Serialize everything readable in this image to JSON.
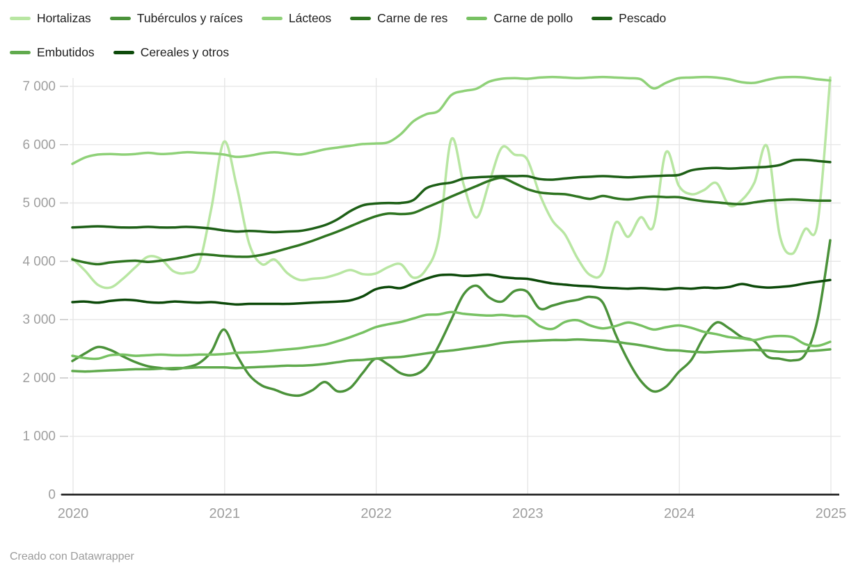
{
  "footer": {
    "credit": "Creado con Datawrapper"
  },
  "legend": {
    "position": "top"
  },
  "chart_data": {
    "type": "line",
    "title": "",
    "xlabel": "",
    "ylabel": "",
    "x_unit": "month",
    "x_range": [
      "2020-01",
      "2025-01"
    ],
    "x_ticks": [
      "2020",
      "2021",
      "2022",
      "2023",
      "2024",
      "2025"
    ],
    "y_ticks": [
      {
        "value": 0,
        "label": "0"
      },
      {
        "value": 1000,
        "label": "1 000"
      },
      {
        "value": 2000,
        "label": "2 000"
      },
      {
        "value": 3000,
        "label": "3 000"
      },
      {
        "value": 4000,
        "label": "4 000"
      },
      {
        "value": 5000,
        "label": "5 000"
      },
      {
        "value": 6000,
        "label": "6 000"
      },
      {
        "value": 7000,
        "label": "7 000"
      }
    ],
    "ylim": [
      0,
      7000
    ],
    "grid": "on",
    "legend_position": "top",
    "style": {
      "grid_color": "#e4e4e4",
      "tick_color": "#c9c9c9",
      "axis_text_color": "#9e9e9e",
      "baseline_color": "#141414",
      "line_width": 3.5
    },
    "series": [
      {
        "name": "Hortalizas",
        "color": "#b8e6a2",
        "values": [
          4050,
          3840,
          3600,
          3550,
          3700,
          3900,
          4080,
          4040,
          3830,
          3800,
          3950,
          4900,
          6050,
          5300,
          4300,
          3950,
          4030,
          3800,
          3680,
          3700,
          3720,
          3780,
          3850,
          3780,
          3790,
          3900,
          3950,
          3720,
          3860,
          4400,
          6090,
          5300,
          4750,
          5350,
          5950,
          5830,
          5750,
          5150,
          4700,
          4460,
          4050,
          3763,
          3820,
          4660,
          4420,
          4755,
          4600,
          5870,
          5300,
          5150,
          5220,
          5340,
          4960,
          5050,
          5350,
          5970,
          4450,
          4130,
          4550,
          4650,
          7150
        ]
      },
      {
        "name": "Tubérculos y raíces",
        "color": "#4b923a",
        "values": [
          2290,
          2420,
          2530,
          2480,
          2370,
          2270,
          2200,
          2170,
          2150,
          2180,
          2250,
          2450,
          2830,
          2400,
          2050,
          1870,
          1800,
          1720,
          1700,
          1790,
          1930,
          1770,
          1830,
          2090,
          2330,
          2230,
          2080,
          2050,
          2180,
          2550,
          3000,
          3440,
          3580,
          3380,
          3310,
          3490,
          3480,
          3190,
          3240,
          3300,
          3340,
          3390,
          3290,
          2750,
          2300,
          1950,
          1770,
          1850,
          2100,
          2310,
          2700,
          2950,
          2850,
          2700,
          2630,
          2370,
          2330,
          2300,
          2400,
          3000,
          4360
        ]
      },
      {
        "name": "Lácteos",
        "color": "#8fd178",
        "values": [
          5670,
          5780,
          5830,
          5840,
          5830,
          5840,
          5860,
          5840,
          5850,
          5870,
          5860,
          5850,
          5830,
          5790,
          5810,
          5850,
          5870,
          5850,
          5830,
          5870,
          5920,
          5950,
          5980,
          6010,
          6020,
          6040,
          6180,
          6400,
          6520,
          6580,
          6850,
          6920,
          6960,
          7080,
          7130,
          7140,
          7130,
          7150,
          7160,
          7150,
          7140,
          7150,
          7160,
          7150,
          7140,
          7120,
          6965,
          7060,
          7140,
          7150,
          7160,
          7150,
          7120,
          7070,
          7060,
          7110,
          7150,
          7160,
          7150,
          7120,
          7100
        ]
      },
      {
        "name": "Carne de res",
        "color": "#2e7420",
        "values": [
          4030,
          3980,
          3950,
          3980,
          4000,
          4010,
          3990,
          4010,
          4040,
          4080,
          4120,
          4110,
          4090,
          4080,
          4080,
          4110,
          4160,
          4220,
          4280,
          4350,
          4430,
          4510,
          4600,
          4690,
          4770,
          4820,
          4810,
          4830,
          4920,
          5010,
          5110,
          5200,
          5290,
          5380,
          5430,
          5340,
          5240,
          5180,
          5160,
          5150,
          5110,
          5070,
          5120,
          5080,
          5060,
          5090,
          5110,
          5100,
          5100,
          5060,
          5030,
          5010,
          4990,
          4980,
          5010,
          5040,
          5050,
          5060,
          5050,
          5040,
          5040
        ]
      },
      {
        "name": "Carne de pollo",
        "color": "#77c162",
        "values": [
          2380,
          2340,
          2330,
          2390,
          2400,
          2380,
          2390,
          2400,
          2390,
          2390,
          2400,
          2400,
          2410,
          2430,
          2440,
          2450,
          2470,
          2490,
          2510,
          2540,
          2570,
          2630,
          2700,
          2780,
          2870,
          2920,
          2960,
          3020,
          3080,
          3090,
          3130,
          3100,
          3080,
          3070,
          3080,
          3060,
          3050,
          2890,
          2840,
          2960,
          2990,
          2900,
          2850,
          2890,
          2950,
          2900,
          2830,
          2870,
          2900,
          2860,
          2790,
          2750,
          2700,
          2680,
          2650,
          2700,
          2720,
          2700,
          2580,
          2550,
          2620
        ]
      },
      {
        "name": "Pescado",
        "color": "#1d5f16",
        "values": [
          4580,
          4590,
          4600,
          4590,
          4580,
          4580,
          4590,
          4580,
          4580,
          4590,
          4580,
          4560,
          4530,
          4510,
          4520,
          4510,
          4500,
          4510,
          4520,
          4560,
          4620,
          4720,
          4860,
          4960,
          4990,
          5000,
          5000,
          5050,
          5250,
          5320,
          5350,
          5420,
          5440,
          5450,
          5460,
          5460,
          5460,
          5410,
          5400,
          5420,
          5440,
          5450,
          5460,
          5450,
          5440,
          5450,
          5460,
          5470,
          5480,
          5560,
          5590,
          5600,
          5590,
          5600,
          5610,
          5620,
          5650,
          5730,
          5740,
          5720,
          5700
        ]
      },
      {
        "name": "Embutidos",
        "color": "#60aa4d",
        "values": [
          2120,
          2110,
          2120,
          2130,
          2140,
          2150,
          2150,
          2160,
          2170,
          2170,
          2180,
          2180,
          2180,
          2170,
          2180,
          2190,
          2200,
          2210,
          2210,
          2220,
          2240,
          2270,
          2300,
          2310,
          2330,
          2350,
          2360,
          2390,
          2420,
          2450,
          2470,
          2500,
          2530,
          2560,
          2600,
          2620,
          2630,
          2640,
          2650,
          2650,
          2660,
          2650,
          2640,
          2620,
          2590,
          2560,
          2520,
          2480,
          2470,
          2450,
          2440,
          2450,
          2460,
          2470,
          2480,
          2470,
          2450,
          2450,
          2460,
          2470,
          2490
        ]
      },
      {
        "name": "Cereales y otros",
        "color": "#0d4a0a",
        "values": [
          3300,
          3310,
          3290,
          3320,
          3340,
          3330,
          3300,
          3290,
          3310,
          3300,
          3290,
          3300,
          3280,
          3260,
          3270,
          3270,
          3270,
          3270,
          3280,
          3290,
          3300,
          3310,
          3330,
          3400,
          3520,
          3560,
          3540,
          3620,
          3700,
          3760,
          3770,
          3750,
          3760,
          3770,
          3730,
          3710,
          3700,
          3660,
          3620,
          3600,
          3580,
          3570,
          3550,
          3540,
          3530,
          3540,
          3530,
          3520,
          3540,
          3530,
          3550,
          3540,
          3560,
          3610,
          3570,
          3550,
          3560,
          3580,
          3620,
          3650,
          3680
        ]
      }
    ]
  }
}
